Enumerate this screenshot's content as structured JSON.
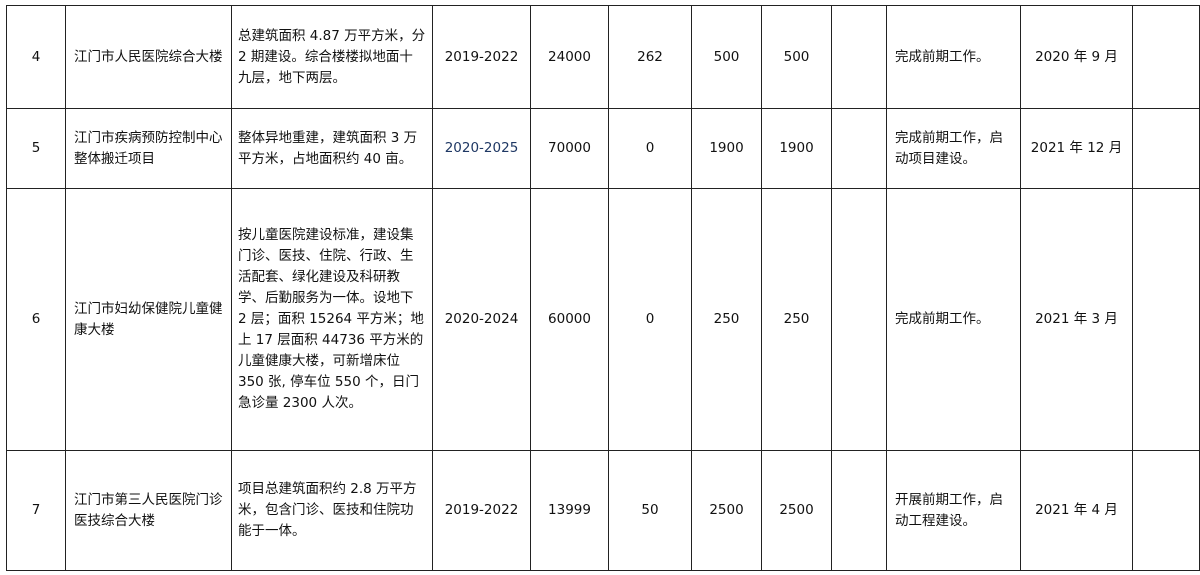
{
  "rows": [
    {
      "no": "4",
      "name": "江门市人民医院综合大楼",
      "desc": "总建筑面积 4.87 万平方米，分 2 期建设。综合楼楼拟地面十九层，地下两层。",
      "period": "2019-2022",
      "total": "24000",
      "done": "262",
      "plan": "500",
      "c8": "500",
      "c9": "",
      "progress": "完成前期工作。",
      "date": "2020 年 9 月",
      "c12": ""
    },
    {
      "no": "5",
      "name": "江门市疾病预防控制中心整体搬迁项目",
      "desc": "整体异地重建，建筑面积 3 万平方米，占地面积约 40 亩。",
      "period": "2020-2025",
      "total": "70000",
      "done": "0",
      "plan": "1900",
      "c8": "1900",
      "c9": "",
      "progress": "完成前期工作，启动项目建设。",
      "date": "2021 年 12 月",
      "c12": ""
    },
    {
      "no": "6",
      "name": "江门市妇幼保健院儿童健康大楼",
      "desc": "按儿童医院建设标准，建设集门诊、医技、住院、行政、生活配套、绿化建设及科研教学、后勤服务为一体。设地下 2 层；面积 15264 平方米；地上 17 层面积 44736 平方米的儿童健康大楼，可新增床位 350 张, 停车位 550 个，日门急诊量 2300 人次。",
      "period": "2020-2024",
      "total": "60000",
      "done": "0",
      "plan": "250",
      "c8": "250",
      "c9": "",
      "progress": "完成前期工作。",
      "date": "2021 年 3 月",
      "c12": ""
    },
    {
      "no": "7",
      "name": "江门市第三人民医院门诊医技综合大楼",
      "desc": "项目总建筑面积约 2.8 万平方米，包含门诊、医技和住院功能于一体。",
      "period": "2019-2022",
      "total": "13999",
      "done": "50",
      "plan": "2500",
      "c8": "2500",
      "c9": "",
      "progress": "开展前期工作，启动工程建设。",
      "date": "2021 年 4 月",
      "c12": ""
    }
  ],
  "colors": {
    "border": "#222222",
    "period_highlight": "#1f3864"
  }
}
